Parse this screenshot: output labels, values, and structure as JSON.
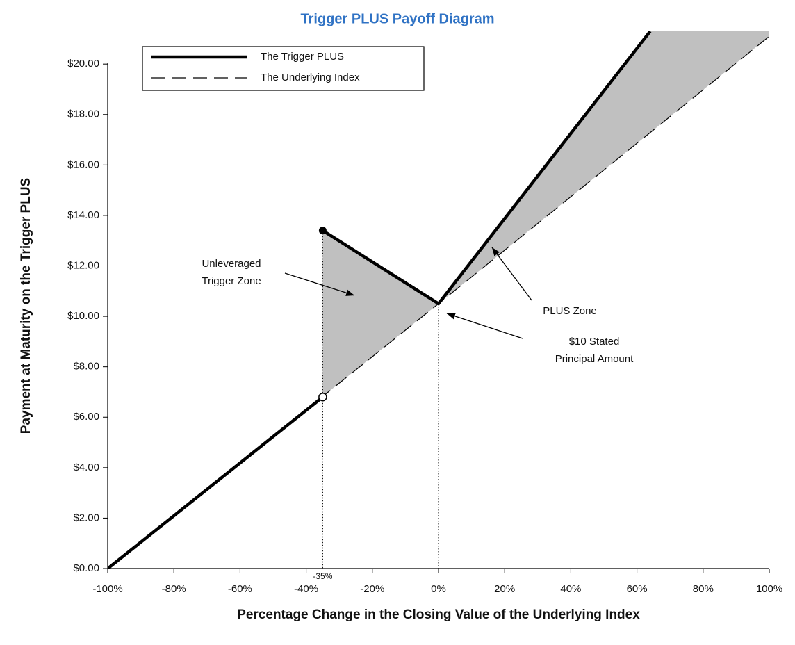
{
  "chart_data": {
    "type": "line",
    "title": "Trigger PLUS Payoff Diagram",
    "x_label": "Percentage Change in the Closing Value of the Underlying Index",
    "y_label": "Payment at Maturity on the Trigger PLUS",
    "xlim": [
      -100,
      100
    ],
    "ylim": [
      0,
      21.3
    ],
    "xticks": [
      {
        "value": -100,
        "label": "-100%"
      },
      {
        "value": -80,
        "label": "-80%"
      },
      {
        "value": -60,
        "label": "-60%"
      },
      {
        "value": -40,
        "label": "-40%"
      },
      {
        "value": -20,
        "label": "-20%"
      },
      {
        "value": 0,
        "label": "0%"
      },
      {
        "value": 20,
        "label": "20%"
      },
      {
        "value": 40,
        "label": "40%"
      },
      {
        "value": 60,
        "label": "60%"
      },
      {
        "value": 80,
        "label": "80%"
      },
      {
        "value": 100,
        "label": "100%"
      }
    ],
    "yticks": [
      {
        "value": 0,
        "label": "$0.00"
      },
      {
        "value": 2,
        "label": "$2.00"
      },
      {
        "value": 4,
        "label": "$4.00"
      },
      {
        "value": 6,
        "label": "$6.00"
      },
      {
        "value": 8,
        "label": "$8.00"
      },
      {
        "value": 10,
        "label": "$10.00"
      },
      {
        "value": 12,
        "label": "$12.00"
      },
      {
        "value": 14,
        "label": "$14.00"
      },
      {
        "value": 16,
        "label": "$16.00"
      },
      {
        "value": 18,
        "label": "$18.00"
      },
      {
        "value": 20,
        "label": "$20.00"
      }
    ],
    "trigger_level": {
      "value": -35,
      "label": "-35%"
    },
    "legend": "top-left",
    "series": [
      {
        "name": "The Underlying Index",
        "color": "#000000",
        "style": "dashed",
        "x": [
          -100,
          0,
          100
        ],
        "values": [
          0,
          10.5,
          21.1
        ]
      },
      {
        "name": "The Trigger PLUS",
        "color": "#000000",
        "style": "solid",
        "x": [
          -100,
          -35,
          -35,
          -35,
          0,
          64
        ],
        "values": [
          0,
          6.8,
          null,
          13.4,
          10.5,
          21.3
        ]
      }
    ],
    "annotations": [
      {
        "lines": [
          "Unleveraged",
          "Trigger Zone"
        ]
      },
      {
        "lines": [
          "PLUS Zone"
        ]
      },
      {
        "lines": [
          "$10 Stated",
          "Principal Amount"
        ]
      }
    ]
  }
}
